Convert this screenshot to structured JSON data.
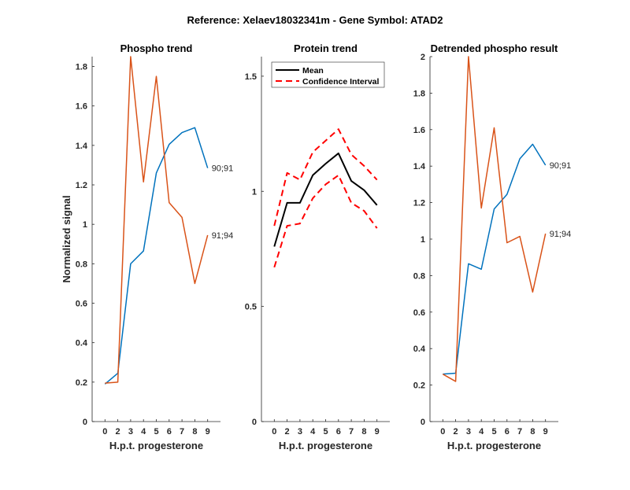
{
  "figure_title": "Reference:  Xelaev18032341m - Gene Symbol:  ATAD2",
  "colors": {
    "blue": "#0072BD",
    "orange": "#D95319",
    "mean": "#000000",
    "ci": "#FF0000"
  },
  "chart_data": [
    {
      "type": "line",
      "title": "Phospho trend",
      "xlabel": "H.p.t. progesterone",
      "ylabel": "Normalized signal",
      "categories": [
        "0",
        "2",
        "3",
        "4",
        "5",
        "6",
        "7",
        "8",
        "9"
      ],
      "xlim": [
        0,
        10
      ],
      "ylim": [
        0,
        1.85
      ],
      "yticks": [
        0,
        0.2,
        0.4,
        0.6,
        0.8,
        1,
        1.2,
        1.4,
        1.6,
        1.8
      ],
      "ytick_labels": [
        "0",
        "0.2",
        "0.4",
        "0.6",
        "0.8",
        "1",
        "1.2",
        "1.4",
        "1.6",
        "1.8"
      ],
      "series": [
        {
          "name": "90;91",
          "color": "#0072BD",
          "values": [
            0.19,
            0.245,
            0.8,
            0.865,
            1.26,
            1.405,
            1.465,
            1.49,
            1.285
          ]
        },
        {
          "name": "91;94",
          "color": "#D95319",
          "values": [
            0.195,
            0.2,
            1.85,
            1.215,
            1.75,
            1.11,
            1.035,
            0.7,
            0.945
          ]
        }
      ]
    },
    {
      "type": "line",
      "title": "Protein trend",
      "xlabel": "H.p.t. progesterone",
      "ylabel": "",
      "categories": [
        "0",
        "2",
        "3",
        "4",
        "5",
        "6",
        "7",
        "8",
        "9"
      ],
      "xlim": [
        0,
        10
      ],
      "ylim": [
        0,
        1.585
      ],
      "yticks": [
        0,
        0.5,
        1,
        1.5
      ],
      "ytick_labels": [
        "0",
        "0.5",
        "1",
        "1.5"
      ],
      "legend": {
        "placement": "top-left",
        "entries": [
          "Mean",
          "Confidence Interval"
        ]
      },
      "series": [
        {
          "name": "Mean",
          "color": "#000000",
          "style": "solid",
          "values": [
            0.76,
            0.95,
            0.95,
            1.07,
            1.12,
            1.165,
            1.045,
            1.005,
            0.94
          ]
        },
        {
          "name": "Confidence Interval upper",
          "color": "#FF0000",
          "style": "dashed",
          "values": [
            0.85,
            1.08,
            1.05,
            1.17,
            1.22,
            1.27,
            1.16,
            1.11,
            1.05
          ]
        },
        {
          "name": "Confidence Interval lower",
          "color": "#FF0000",
          "style": "dashed",
          "values": [
            0.67,
            0.85,
            0.86,
            0.97,
            1.03,
            1.07,
            0.95,
            0.915,
            0.84
          ]
        }
      ]
    },
    {
      "type": "line",
      "title": "Detrended phospho result",
      "xlabel": "H.p.t. progesterone",
      "ylabel": "",
      "categories": [
        "0",
        "2",
        "3",
        "4",
        "5",
        "6",
        "7",
        "8",
        "9"
      ],
      "xlim": [
        0,
        10
      ],
      "ylim": [
        0,
        2
      ],
      "yticks": [
        0,
        0.2,
        0.4,
        0.6,
        0.8,
        1,
        1.2,
        1.4,
        1.6,
        1.8,
        2
      ],
      "ytick_labels": [
        "0",
        "0.2",
        "0.4",
        "0.6",
        "0.8",
        "1",
        "1.2",
        "1.4",
        "1.6",
        "1.8",
        "2"
      ],
      "series": [
        {
          "name": "90;91",
          "color": "#0072BD",
          "values": [
            0.26,
            0.265,
            0.865,
            0.835,
            1.165,
            1.245,
            1.44,
            1.52,
            1.405
          ]
        },
        {
          "name": "91;94",
          "color": "#D95319",
          "values": [
            0.26,
            0.22,
            2.0,
            1.17,
            1.61,
            0.98,
            1.015,
            0.71,
            1.03
          ]
        }
      ]
    }
  ]
}
